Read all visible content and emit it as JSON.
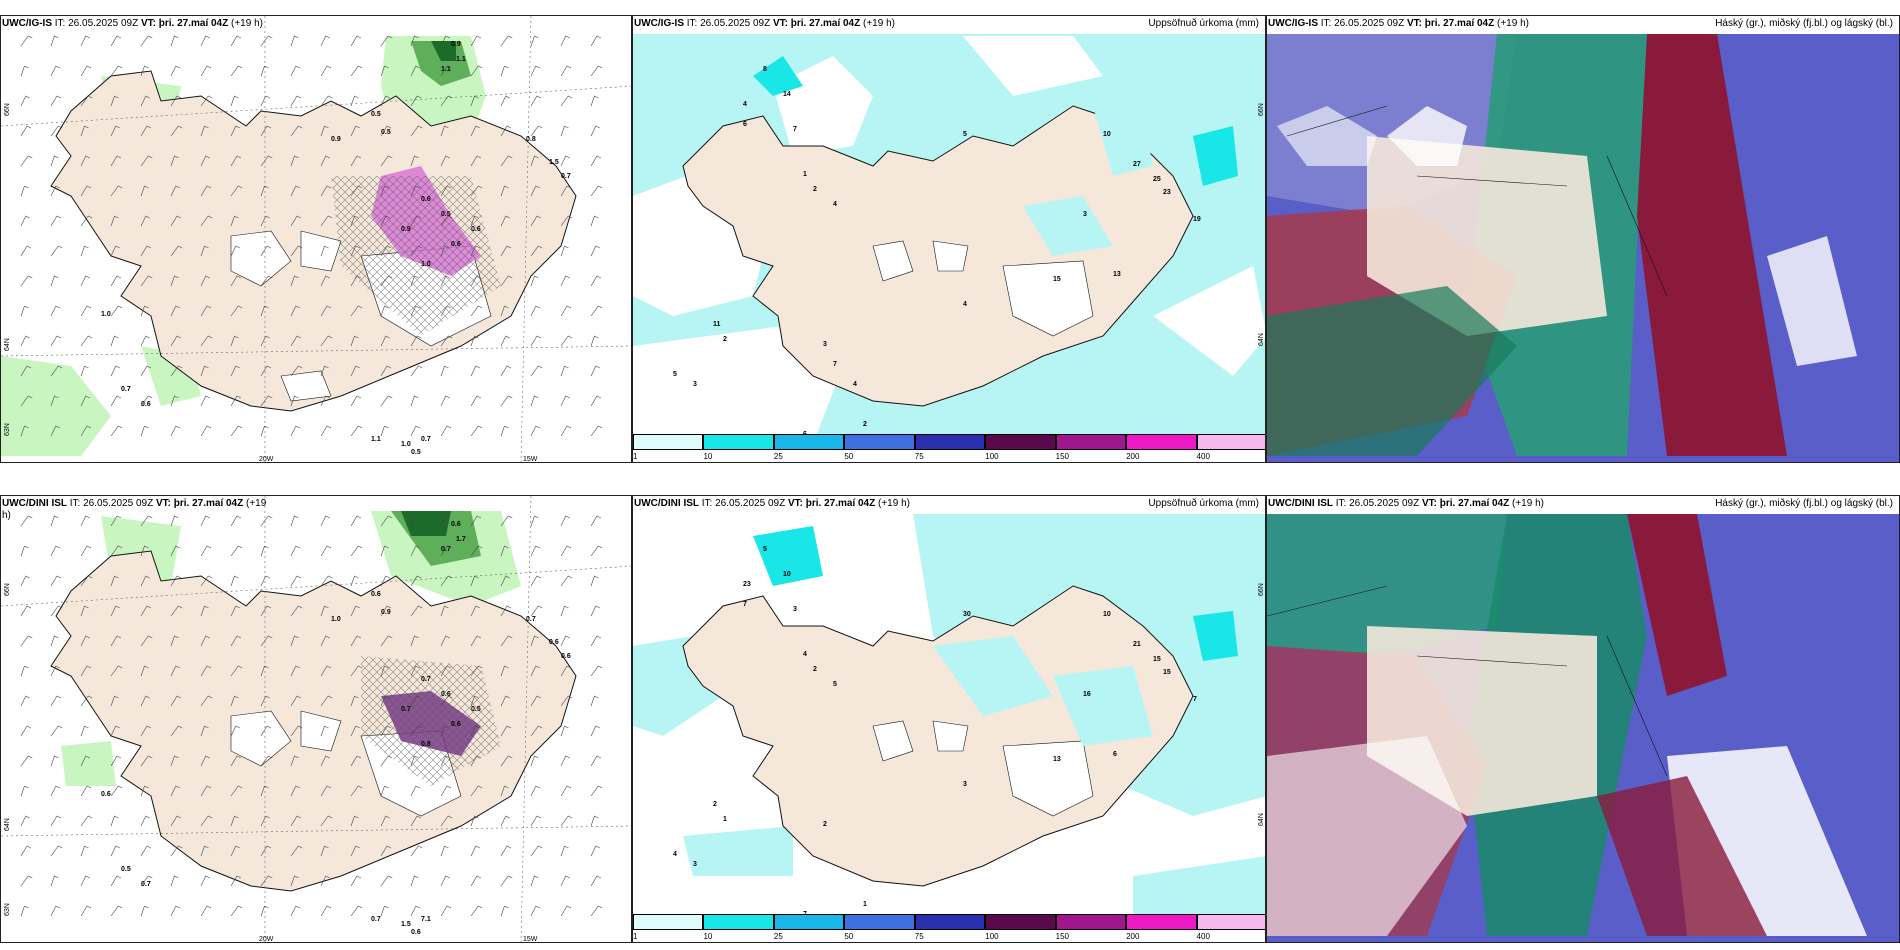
{
  "colors": {
    "land": "#f5e8da",
    "coast": "#111111",
    "cyan": "#b7f5f5",
    "green_light": "#c8f5c0",
    "green_dark": "#1c6b2a",
    "magenta": "#d877d6",
    "blue": "#5a5ec8",
    "maroon": "#8a1a3b",
    "teal": "#2a9a7a"
  },
  "panels": [
    {
      "id": "p1",
      "model": "UWC/IG-IS",
      "it": "IT: 26.05.2025 09Z",
      "vt_label": "VT:",
      "vt": "þri. 27.maí 04Z",
      "lead": "(+19 h)",
      "right": "",
      "axes": {
        "lon1": "20W",
        "lon2": "15W",
        "lat1": "66N",
        "lat2": "64N",
        "lat3": "63N"
      },
      "labels": [
        "0.9",
        "1.1",
        "1.1",
        "0.5",
        "0.9",
        "0.5",
        "0.8",
        "1.5",
        "0.7",
        "0.6",
        "0.5",
        "0.6",
        "0.6",
        "0.9",
        "1.0",
        "1.0",
        "0.7",
        "0.6",
        "1.1",
        "1.0",
        "0.7",
        "0.5"
      ]
    },
    {
      "id": "p2",
      "model": "UWC/IG-IS",
      "it": "IT: 26.05.2025 09Z",
      "vt_label": "VT:",
      "vt": "þri. 27.maí 04Z",
      "lead": "(+19 h)",
      "right": "Uppsöfnuð úrkoma (mm)",
      "axes": {
        "lat1": "66N",
        "lat2": "64N"
      },
      "labels": [
        "8",
        "14",
        "4",
        "6",
        "7",
        "1",
        "2",
        "4",
        "5",
        "27",
        "25",
        "23",
        "10",
        "19",
        "3",
        "15",
        "13",
        "4",
        "11",
        "2",
        "3",
        "5",
        "6",
        "2",
        "3",
        "7",
        "4"
      ]
    },
    {
      "id": "p3",
      "model": "UWC/IG-IS",
      "it": "IT: 26.05.2025 09Z",
      "vt_label": "VT:",
      "vt": "þri. 27.maí 04Z",
      "lead": "(+19 h)",
      "right": "Háský (gr.), miðský (fj.bl.) og lágský (bl.)"
    },
    {
      "id": "p4",
      "model": "UWC/DINI ISL",
      "it": "IT: 26.05.2025 09Z",
      "vt_label": "VT:",
      "vt": "þri. 27.maí 04Z",
      "lead": "(+19",
      "lead2": "h)",
      "right": "",
      "axes": {
        "lon1": "20W",
        "lon2": "15W",
        "lat1": "66N",
        "lat2": "64N",
        "lat3": "63N"
      },
      "labels": [
        "0.6",
        "1.7",
        "0.7",
        "0.6",
        "1.0",
        "0.9",
        "0.7",
        "0.6",
        "0.6",
        "0.7",
        "0.6",
        "0.5",
        "0.6",
        "0.7",
        "0.8",
        "0.6",
        "0.5",
        "0.7",
        "0.7",
        "1.5",
        "7.1",
        "0.6"
      ]
    },
    {
      "id": "p5",
      "model": "UWC/DINI ISL",
      "it": "IT: 26.05.2025 09Z",
      "vt_label": "VT:",
      "vt": "þri. 27.maí 04Z",
      "lead": "(+19 h)",
      "right": "Uppsöfnuð úrkoma (mm)",
      "axes": {
        "lat1": "66N",
        "lat2": "64N"
      },
      "labels": [
        "5",
        "10",
        "23",
        "7",
        "3",
        "4",
        "2",
        "5",
        "30",
        "21",
        "15",
        "15",
        "10",
        "7",
        "16",
        "13",
        "6",
        "3",
        "2",
        "1",
        "3",
        "4",
        "7",
        "1",
        "2"
      ]
    },
    {
      "id": "p6",
      "model": "UWC/DINI ISL",
      "it": "IT: 26.05.2025 09Z",
      "vt_label": "VT:",
      "vt": "þri. 27.maí 04Z",
      "lead": "(+19 h)",
      "right": "Háský (gr.), miðský (fj.bl.) og lágský (bl.)"
    }
  ],
  "colorbar": {
    "labels": [
      "1",
      "10",
      "25",
      "50",
      "75",
      "100",
      "150",
      "200",
      "400"
    ],
    "colors": [
      "#dffcfc",
      "#19e6e6",
      "#1ab8ea",
      "#3f6fe0",
      "#2a2fb0",
      "#5a0a4a",
      "#a0168f",
      "#ee18c4",
      "#f7b8ef"
    ]
  }
}
